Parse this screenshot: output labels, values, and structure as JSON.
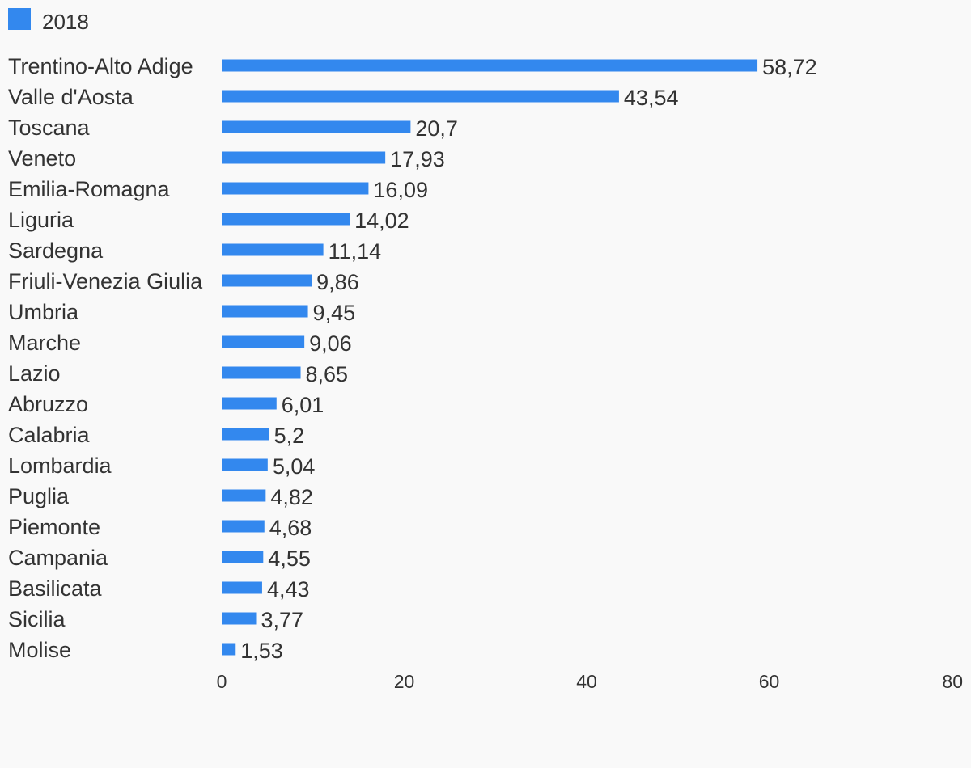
{
  "chart_data": {
    "type": "bar",
    "orientation": "horizontal",
    "title": "",
    "xlabel": "",
    "ylabel": "",
    "legend_position": "top-left",
    "grid": false,
    "xlim": [
      0,
      80
    ],
    "x_ticks": [
      "0",
      "20",
      "40",
      "60",
      "80"
    ],
    "categories": [
      "Trentino-Alto Adige",
      "Valle d'Aosta",
      "Toscana",
      "Veneto",
      "Emilia-Romagna",
      "Liguria",
      "Sardegna",
      "Friuli-Venezia Giulia",
      "Umbria",
      "Marche",
      "Lazio",
      "Abruzzo",
      "Calabria",
      "Lombardia",
      "Puglia",
      "Piemonte",
      "Campania",
      "Basilicata",
      "Sicilia",
      "Molise"
    ],
    "series": [
      {
        "name": "2018",
        "color": "#3388ee",
        "values": [
          58.72,
          43.54,
          20.7,
          17.93,
          16.09,
          14.02,
          11.14,
          9.86,
          9.45,
          9.06,
          8.65,
          6.01,
          5.2,
          5.04,
          4.82,
          4.68,
          4.55,
          4.43,
          3.77,
          1.53
        ],
        "value_labels": [
          "58,72",
          "43,54",
          "20,7",
          "17,93",
          "16,09",
          "14,02",
          "11,14",
          "9,86",
          "9,45",
          "9,06",
          "8,65",
          "6,01",
          "5,2",
          "5,04",
          "4,82",
          "4,68",
          "4,55",
          "4,43",
          "3,77",
          "1,53"
        ]
      }
    ]
  }
}
